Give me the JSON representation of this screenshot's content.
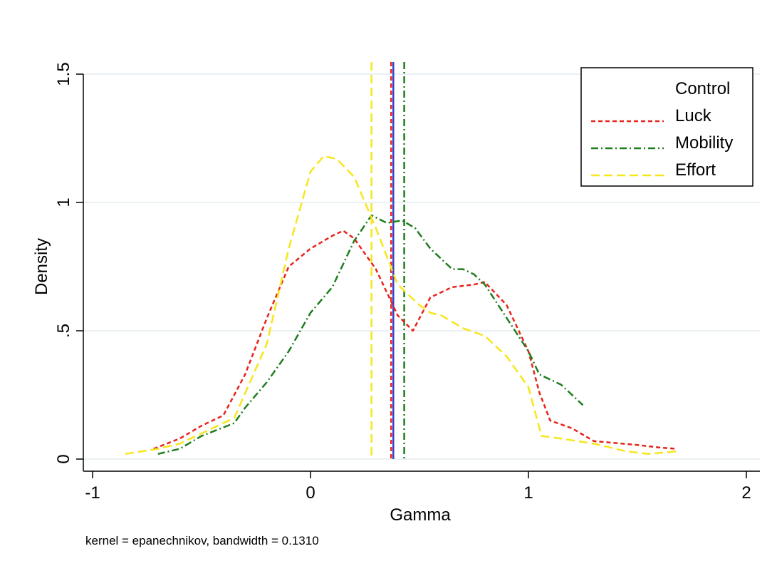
{
  "chart_data": {
    "type": "line",
    "title": "",
    "xlabel": "Gamma",
    "ylabel": "Density",
    "note": "kernel = epanechnikov, bandwidth = 0.1310",
    "xlim": [
      -1,
      2.05
    ],
    "ylim": [
      0,
      1.5
    ],
    "xticks": [
      -1,
      0,
      1,
      2
    ],
    "xtick_labels": [
      "-1",
      "0",
      "1",
      "2"
    ],
    "yticks": [
      0,
      0.5,
      1,
      1.5
    ],
    "ytick_labels": [
      "0",
      ".5",
      "1",
      "1.5"
    ],
    "grid": true,
    "legend_position": "top-right",
    "series": [
      {
        "name": "Control",
        "color": "#3340cc",
        "dash": "solid",
        "x": [],
        "y": [],
        "mean_line": 0.38
      },
      {
        "name": "Luck",
        "color": "#e8241c",
        "dash": "short-dash",
        "x": [
          -0.72,
          -0.6,
          -0.5,
          -0.4,
          -0.3,
          -0.2,
          -0.1,
          0.0,
          0.1,
          0.15,
          0.2,
          0.3,
          0.4,
          0.47,
          0.55,
          0.65,
          0.75,
          0.8,
          0.9,
          1.0,
          1.05,
          1.1,
          1.2,
          1.3,
          1.5,
          1.6,
          1.68
        ],
        "y": [
          0.04,
          0.08,
          0.13,
          0.17,
          0.33,
          0.55,
          0.75,
          0.82,
          0.87,
          0.89,
          0.86,
          0.74,
          0.56,
          0.5,
          0.63,
          0.67,
          0.68,
          0.69,
          0.6,
          0.42,
          0.26,
          0.15,
          0.12,
          0.07,
          0.055,
          0.045,
          0.04
        ],
        "mean_line": 0.37
      },
      {
        "name": "Mobility",
        "color": "#1f7d1f",
        "dash": "dash-dot",
        "x": [
          -0.7,
          -0.6,
          -0.5,
          -0.35,
          -0.3,
          -0.2,
          -0.1,
          0.0,
          0.1,
          0.2,
          0.28,
          0.35,
          0.42,
          0.48,
          0.55,
          0.65,
          0.7,
          0.75,
          0.8,
          0.9,
          1.0,
          1.05,
          1.15,
          1.25
        ],
        "y": [
          0.02,
          0.04,
          0.09,
          0.14,
          0.2,
          0.3,
          0.42,
          0.57,
          0.67,
          0.85,
          0.95,
          0.92,
          0.93,
          0.9,
          0.82,
          0.74,
          0.74,
          0.72,
          0.68,
          0.55,
          0.42,
          0.33,
          0.29,
          0.21
        ],
        "mean_line": 0.43
      },
      {
        "name": "Effort",
        "color": "#f7e61b",
        "dash": "long-dash",
        "x": [
          -0.85,
          -0.7,
          -0.6,
          -0.5,
          -0.35,
          -0.2,
          -0.1,
          0.0,
          0.06,
          0.12,
          0.2,
          0.3,
          0.4,
          0.5,
          0.55,
          0.6,
          0.7,
          0.8,
          0.9,
          1.0,
          1.06,
          1.15,
          1.3,
          1.45,
          1.55,
          1.68
        ],
        "y": [
          0.02,
          0.04,
          0.06,
          0.1,
          0.16,
          0.45,
          0.82,
          1.12,
          1.18,
          1.17,
          1.1,
          0.9,
          0.68,
          0.6,
          0.57,
          0.56,
          0.51,
          0.48,
          0.4,
          0.28,
          0.09,
          0.08,
          0.06,
          0.03,
          0.02,
          0.03
        ],
        "mean_line": 0.28
      }
    ]
  }
}
